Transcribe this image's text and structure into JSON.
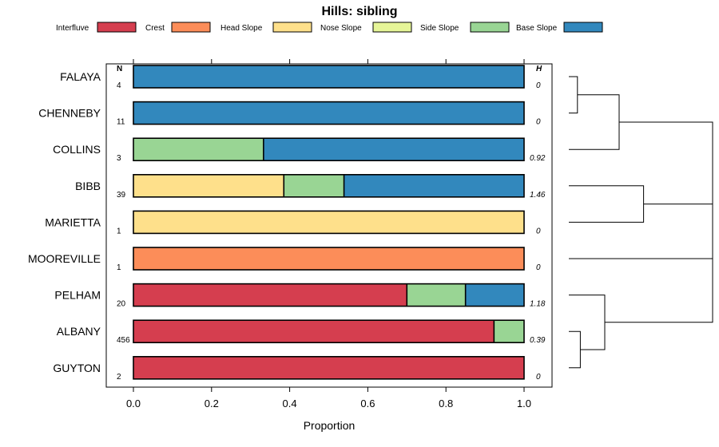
{
  "chart_data": {
    "type": "bar",
    "stacked": true,
    "orientation": "horizontal",
    "title": "Hills: sibling",
    "xlabel": "Proportion",
    "xlim": [
      0,
      1
    ],
    "xticks": [
      "0.0",
      "0.2",
      "0.4",
      "0.6",
      "0.8",
      "1.0"
    ],
    "n_header": "N",
    "h_header": "H",
    "legend": [
      {
        "name": "Interfluve",
        "color": "#D53E4F"
      },
      {
        "name": "Crest",
        "color": "#FC8D59"
      },
      {
        "name": "Head Slope",
        "color": "#FEE08B"
      },
      {
        "name": "Nose Slope",
        "color": "#E6F598"
      },
      {
        "name": "Side Slope",
        "color": "#99D594"
      },
      {
        "name": "Base Slope",
        "color": "#3288BD"
      }
    ],
    "categories": [
      "FALAYA",
      "CHENNEBY",
      "COLLINS",
      "BIBB",
      "MARIETTA",
      "MOOREVILLE",
      "PELHAM",
      "ALBANY",
      "GUYTON"
    ],
    "n": [
      "4",
      "11",
      "3",
      "39",
      "1",
      "1",
      "20",
      "456",
      "2"
    ],
    "h": [
      "0",
      "0",
      "0.92",
      "1.46",
      "0",
      "0",
      "1.18",
      "0.39",
      "0"
    ],
    "series": [
      {
        "name": "Interfluve",
        "values": [
          0,
          0,
          0,
          0,
          0,
          0,
          0.7,
          0.923,
          1.0
        ]
      },
      {
        "name": "Crest",
        "values": [
          0,
          0,
          0,
          0,
          0,
          1.0,
          0,
          0,
          0
        ]
      },
      {
        "name": "Head Slope",
        "values": [
          0,
          0,
          0,
          0.385,
          1.0,
          0,
          0,
          0,
          0
        ]
      },
      {
        "name": "Nose Slope",
        "values": [
          0,
          0,
          0,
          0,
          0,
          0,
          0,
          0,
          0
        ]
      },
      {
        "name": "Side Slope",
        "values": [
          0,
          0,
          0.333,
          0.154,
          0,
          0,
          0.15,
          0.077,
          0
        ]
      },
      {
        "name": "Base Slope",
        "values": [
          1.0,
          1.0,
          0.667,
          0.461,
          0,
          0,
          0.15,
          0,
          0
        ]
      }
    ],
    "dendrogram": {
      "merges": [
        {
          "a": "FALAYA",
          "b": "CHENNEBY",
          "height": 0.06
        },
        {
          "a": "c1",
          "b": "COLLINS",
          "height": 0.35
        },
        {
          "a": "BIBB",
          "b": "MARIETTA",
          "height": 0.52
        },
        {
          "a": "ALBANY",
          "b": "GUYTON",
          "height": 0.08
        },
        {
          "a": "PELHAM",
          "b": "c4",
          "height": 0.25
        },
        {
          "a": "c2",
          "b": "c3",
          "height": 1.0
        },
        {
          "a": "c6",
          "b": "MOOREVILLE",
          "height": 1.0
        },
        {
          "a": "c7",
          "b": "c5",
          "height": 1.0
        }
      ]
    }
  }
}
